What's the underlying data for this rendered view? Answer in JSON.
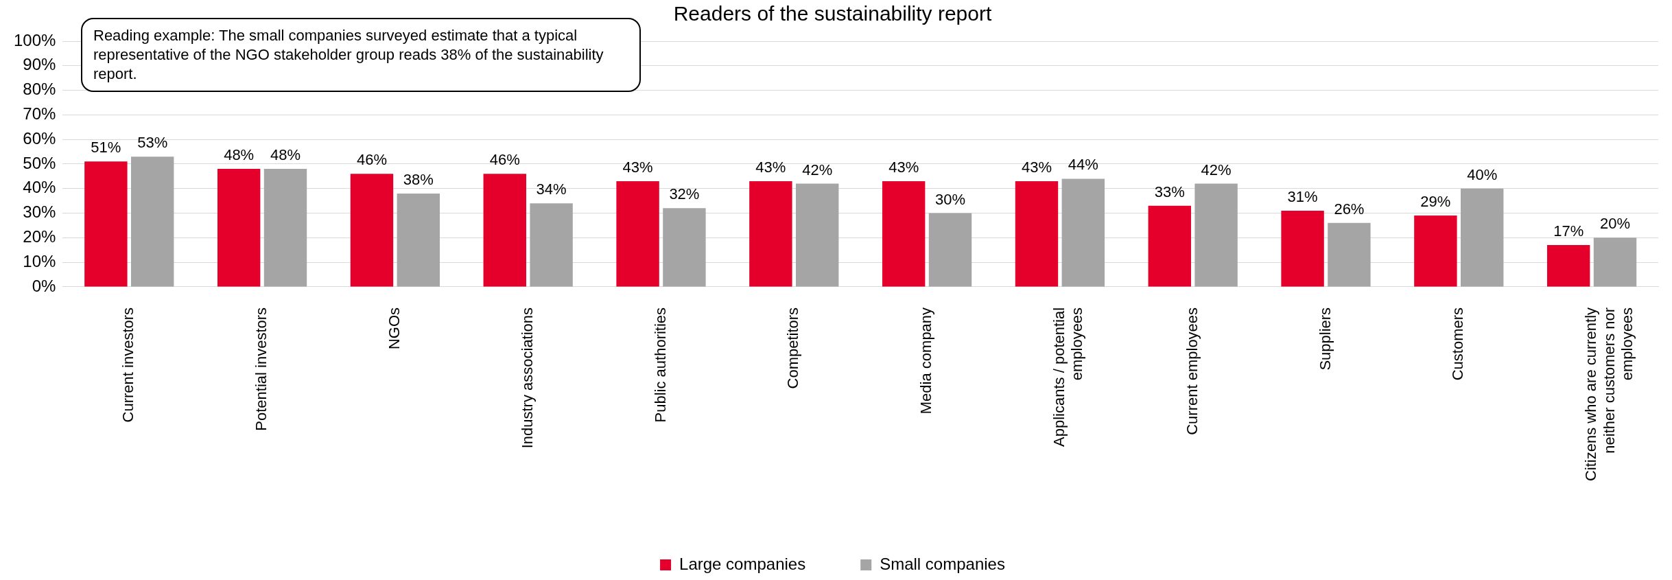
{
  "chart_data": {
    "type": "bar",
    "title": "Readers of the sustainability report",
    "categories": [
      "Current investors",
      "Potential investors",
      "NGOs",
      "Industry associations",
      "Public authorities",
      "Competitors",
      "Media company",
      "Applicants / potential employees",
      "Current employees",
      "Suppliers",
      "Customers",
      "Citizens who are currently neither customers nor employees"
    ],
    "series": [
      {
        "name": "Large companies",
        "color": "#e4002b",
        "values": [
          51,
          48,
          46,
          46,
          43,
          43,
          43,
          43,
          33,
          31,
          29,
          17
        ],
        "value_labels": [
          "51%",
          "48%",
          "46%",
          "46%",
          "43%",
          "43%",
          "43%",
          "43%",
          "33%",
          "31%",
          "29%",
          "17%"
        ]
      },
      {
        "name": "Small companies",
        "color": "#a5a5a5",
        "values": [
          53,
          48,
          38,
          34,
          32,
          42,
          30,
          44,
          42,
          26,
          40,
          20
        ],
        "value_labels": [
          "53%",
          "48%",
          "38%",
          "34%",
          "32%",
          "42%",
          "30%",
          "44%",
          "42%",
          "26%",
          "40%",
          "20%"
        ]
      }
    ],
    "ylim": [
      0,
      100
    ],
    "yticks": [
      {
        "value": 0,
        "label": "0%"
      },
      {
        "value": 10,
        "label": "10%"
      },
      {
        "value": 20,
        "label": "20%"
      },
      {
        "value": 30,
        "label": "30%"
      },
      {
        "value": 40,
        "label": "40%"
      },
      {
        "value": 50,
        "label": "50%"
      },
      {
        "value": 60,
        "label": "60%"
      },
      {
        "value": 70,
        "label": "70%"
      },
      {
        "value": 80,
        "label": "80%"
      },
      {
        "value": 90,
        "label": "90%"
      },
      {
        "value": 100,
        "label": "100%"
      }
    ],
    "grid": "y",
    "legend": "bottom",
    "annotations": [
      "Reading example: The small companies surveyed estimate that a typical representative of the NGO stakeholder group reads 38% of the sustainability report."
    ]
  }
}
